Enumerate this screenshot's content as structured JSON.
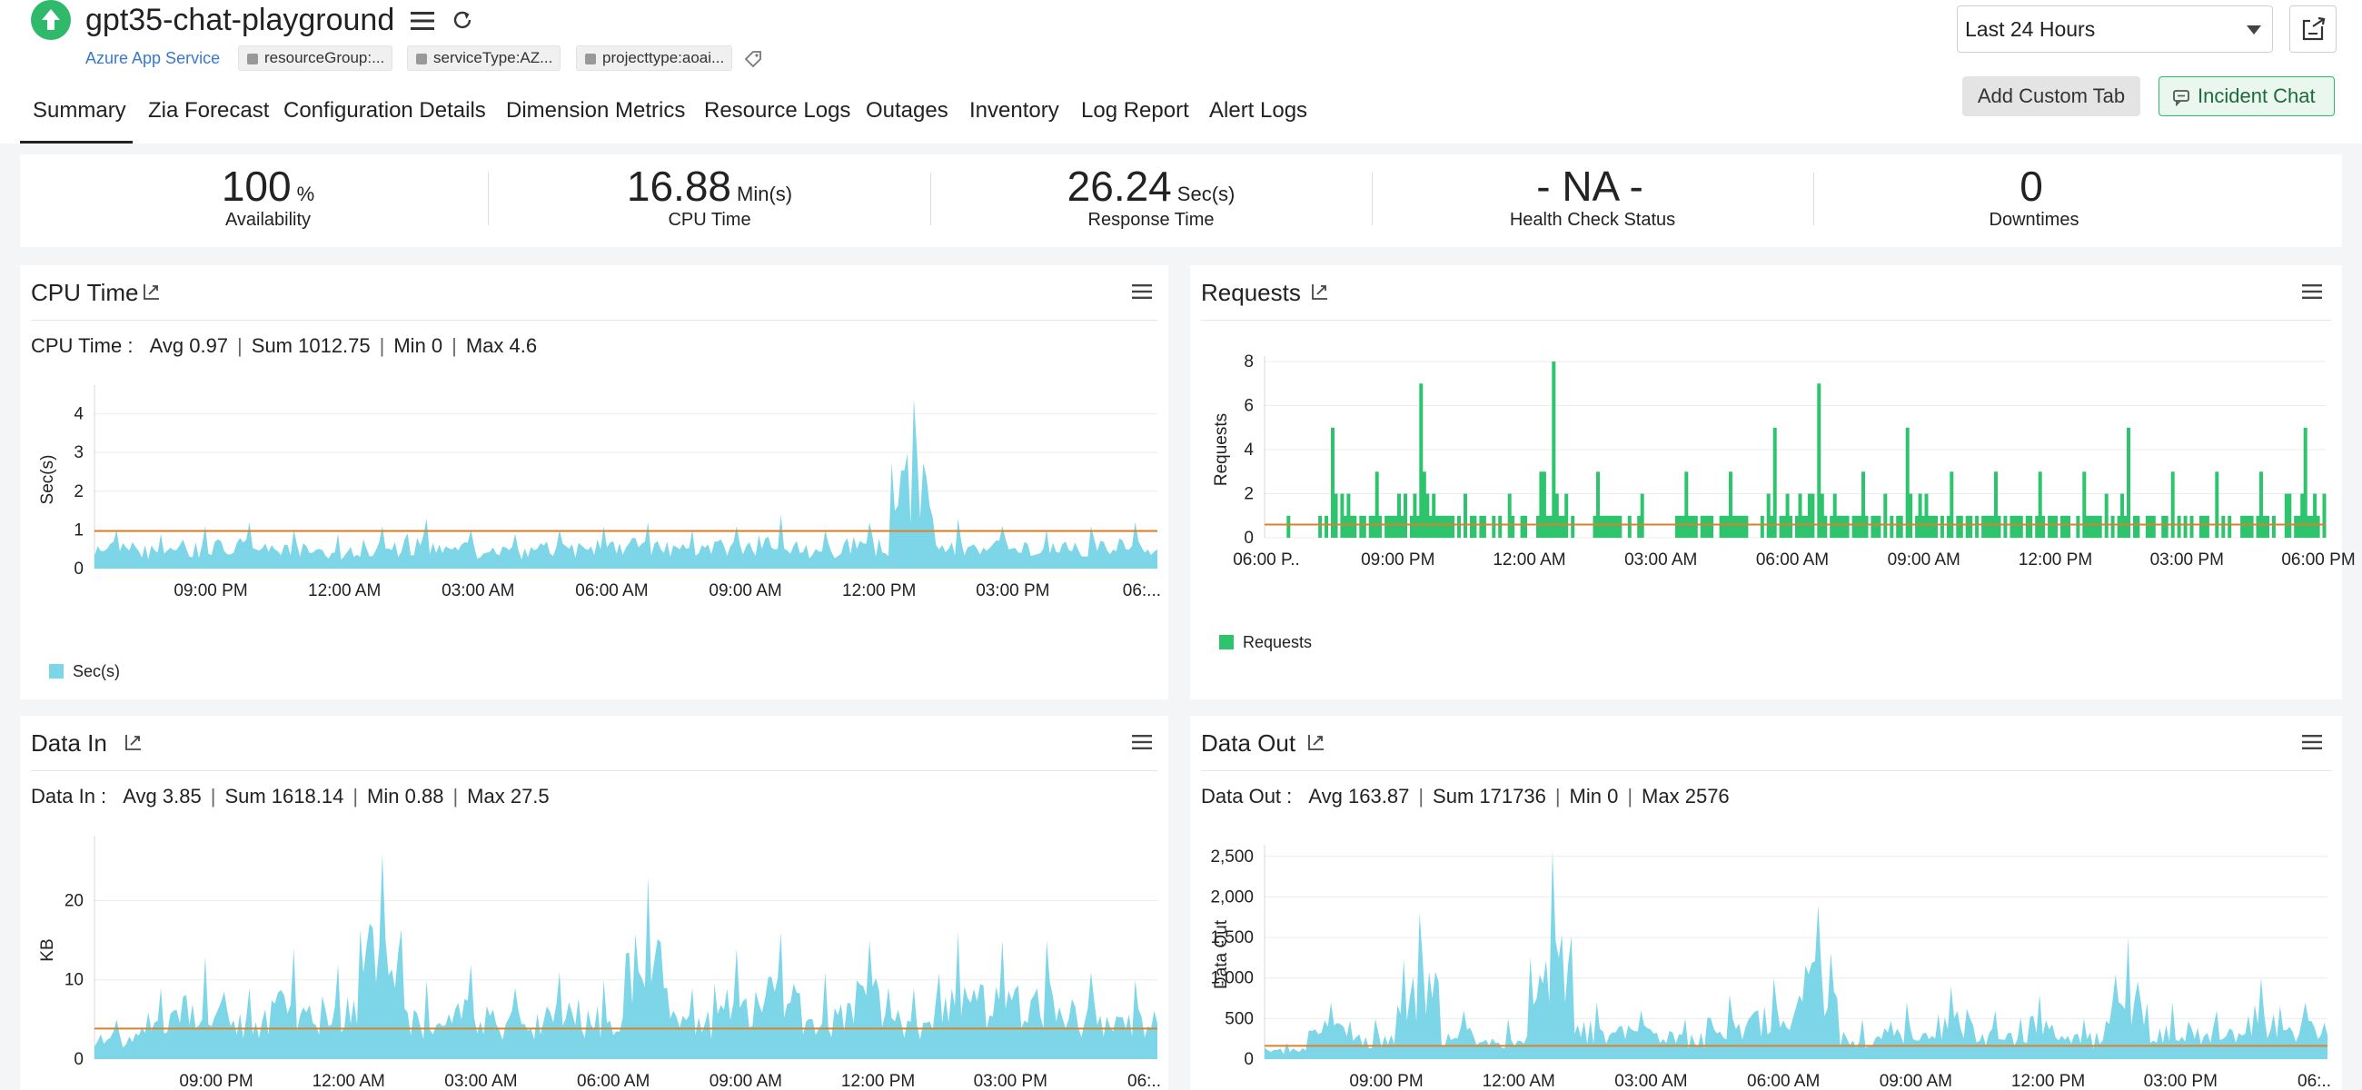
{
  "header": {
    "title": "gpt35-chat-playground",
    "service_type": "Azure App Service",
    "tags": [
      "resourceGroup:...",
      "serviceType:AZ...",
      "projecttype:aoai..."
    ],
    "time_range": "Last 24 Hours",
    "add_custom_tab": "Add Custom Tab",
    "incident_chat": "Incident Chat",
    "app_status_color": "#2fb96b"
  },
  "tabs": [
    "Summary",
    "Zia Forecast",
    "Configuration Details",
    "Dimension Metrics",
    "Resource Logs",
    "Outages",
    "Inventory",
    "Log Report",
    "Alert Logs"
  ],
  "summary": [
    {
      "value": "100",
      "unit": "%",
      "label": "Availability"
    },
    {
      "value": "16.88",
      "unit": "Min(s)",
      "label": "CPU Time"
    },
    {
      "value": "26.24",
      "unit": "Sec(s)",
      "label": "Response Time"
    },
    {
      "value": "- NA -",
      "unit": "",
      "label": "Health Check Status"
    },
    {
      "value": "0",
      "unit": "",
      "label": "Downtimes"
    }
  ],
  "panels": {
    "cpu": {
      "title": "CPU Time",
      "stats_label": "CPU Time :",
      "stats": [
        "Avg 0.97",
        "Sum 1012.75",
        "Min 0",
        "Max 4.6"
      ],
      "legend": "Sec(s)"
    },
    "requests": {
      "title": "Requests",
      "legend": "Requests"
    },
    "datain": {
      "title": "Data In",
      "stats_label": "Data In :",
      "stats": [
        "Avg 3.85",
        "Sum 1618.14",
        "Min 0.88",
        "Max 27.5"
      ]
    },
    "dataout": {
      "title": "Data Out",
      "stats_label": "Data Out :",
      "stats": [
        "Avg 163.87",
        "Sum 171736",
        "Min 0",
        "Max 2576"
      ]
    }
  },
  "chart_data": [
    {
      "type": "area",
      "id": "cpu",
      "ylabel": "Sec(s)",
      "yticks": [
        0,
        1,
        2,
        3,
        4
      ],
      "ylim": [
        0,
        4.6
      ],
      "xtick_labels": [
        "09:00 PM",
        "12:00 AM",
        "03:00 AM",
        "06:00 AM",
        "09:00 AM",
        "12:00 PM",
        "03:00 PM",
        "06:..."
      ],
      "x": [
        "06:00 PM",
        "07:00 PM",
        "08:00 PM",
        "09:00 PM",
        "10:00 PM",
        "11:00 PM",
        "12:00 AM",
        "01:00 AM",
        "02:00 AM",
        "03:00 AM",
        "04:00 AM",
        "05:00 AM",
        "06:00 AM",
        "07:00 AM",
        "08:00 AM",
        "09:00 AM",
        "10:00 AM",
        "11:00 AM",
        "12:00 PM",
        "01:00 PM",
        "02:00 PM",
        "03:00 PM",
        "04:00 PM",
        "05:00 PM",
        "06:00 PM"
      ],
      "series": [
        {
          "name": "Sec(s)",
          "values": [
            1.0,
            0.9,
            1.1,
            1.2,
            1.0,
            0.9,
            1.1,
            1.3,
            1.0,
            0.9,
            1.0,
            1.1,
            1.2,
            1.0,
            1.1,
            1.4,
            1.0,
            1.2,
            4.4,
            1.3,
            1.1,
            1.0,
            1.1,
            1.2,
            1.0
          ]
        }
      ],
      "average": 0.97,
      "color": "#7dd6e8",
      "avg_color": "#d9822b",
      "grid": true
    },
    {
      "type": "bar",
      "id": "requests",
      "ylabel": "Requests",
      "yticks": [
        0,
        2,
        4,
        6,
        8
      ],
      "ylim": [
        0,
        8
      ],
      "xtick_labels": [
        "06:00 P..",
        "09:00 PM",
        "12:00 AM",
        "03:00 AM",
        "06:00 AM",
        "09:00 AM",
        "12:00 PM",
        "03:00 PM",
        "06:00 PM"
      ],
      "x": [
        "06:00 PM",
        "07:00 PM",
        "08:00 PM",
        "09:00 PM",
        "10:00 PM",
        "11:00 PM",
        "12:00 AM",
        "01:00 AM",
        "02:00 AM",
        "03:00 AM",
        "04:00 AM",
        "05:00 AM",
        "06:00 AM",
        "07:00 AM",
        "08:00 AM",
        "09:00 AM",
        "10:00 AM",
        "11:00 AM",
        "12:00 PM",
        "01:00 PM",
        "02:00 PM",
        "03:00 PM",
        "04:00 PM",
        "05:00 PM",
        "06:00 PM"
      ],
      "series": [
        {
          "name": "Requests",
          "values": [
            1,
            5,
            3,
            7,
            2,
            2,
            8,
            3,
            2,
            3,
            3,
            5,
            7,
            3,
            5,
            3,
            3,
            3,
            3,
            5,
            3,
            3,
            3,
            5,
            3
          ]
        }
      ],
      "average": 0.6,
      "color": "#2ec46d",
      "avg_color": "#d9822b",
      "grid": true
    },
    {
      "type": "area",
      "id": "datain",
      "ylabel": "KB",
      "yticks": [
        0,
        10,
        20
      ],
      "ylim": [
        0,
        27.5
      ],
      "xtick_labels": [
        "09:00 PM",
        "12:00 AM",
        "03:00 AM",
        "06:00 AM",
        "09:00 AM",
        "12:00 PM",
        "03:00 PM",
        "06:.."
      ],
      "x": [
        "06:00 PM",
        "07:00 PM",
        "08:00 PM",
        "09:00 PM",
        "10:00 PM",
        "11:00 PM",
        "12:00 AM",
        "01:00 AM",
        "02:00 AM",
        "03:00 AM",
        "04:00 AM",
        "05:00 AM",
        "06:00 AM",
        "07:00 AM",
        "08:00 AM",
        "09:00 AM",
        "10:00 AM",
        "11:00 AM",
        "12:00 PM",
        "01:00 PM",
        "02:00 PM",
        "03:00 PM",
        "04:00 PM",
        "05:00 PM",
        "06:00 PM"
      ],
      "series": [
        {
          "name": "KB",
          "values": [
            5,
            9,
            13,
            9,
            14,
            12,
            26,
            10,
            12,
            9,
            11,
            10,
            23,
            9,
            14,
            16,
            11,
            15,
            9,
            16,
            15,
            15,
            11,
            10,
            9
          ]
        }
      ],
      "average": 3.85,
      "color": "#7dd6e8",
      "avg_color": "#d9822b",
      "grid": true
    },
    {
      "type": "area",
      "id": "dataout",
      "ylabel": "Data Out",
      "yticks": [
        0,
        500,
        1000,
        1500,
        2000,
        2500
      ],
      "ytick_labels": [
        "0",
        "500",
        "1,000",
        "1,500",
        "2,000",
        "2,500"
      ],
      "ylim": [
        0,
        2576
      ],
      "xtick_labels": [
        "09:00 PM",
        "12:00 AM",
        "03:00 AM",
        "06:00 AM",
        "09:00 AM",
        "12:00 PM",
        "03:00 PM",
        "06:.."
      ],
      "x": [
        "06:00 PM",
        "07:00 PM",
        "08:00 PM",
        "09:00 PM",
        "10:00 PM",
        "11:00 PM",
        "12:00 AM",
        "01:00 AM",
        "02:00 AM",
        "03:00 AM",
        "04:00 AM",
        "05:00 AM",
        "06:00 AM",
        "07:00 AM",
        "08:00 AM",
        "09:00 AM",
        "10:00 AM",
        "11:00 AM",
        "12:00 PM",
        "01:00 PM",
        "02:00 PM",
        "03:00 PM",
        "04:00 PM",
        "05:00 PM",
        "06:00 PM"
      ],
      "series": [
        {
          "name": "Data Out",
          "values": [
            200,
            700,
            500,
            1800,
            600,
            500,
            2576,
            700,
            600,
            500,
            800,
            1000,
            1900,
            500,
            700,
            900,
            600,
            800,
            500,
            1500,
            700,
            600,
            1000,
            700,
            600
          ]
        }
      ],
      "average": 163.87,
      "color": "#7dd6e8",
      "avg_color": "#d9822b",
      "grid": true
    }
  ]
}
